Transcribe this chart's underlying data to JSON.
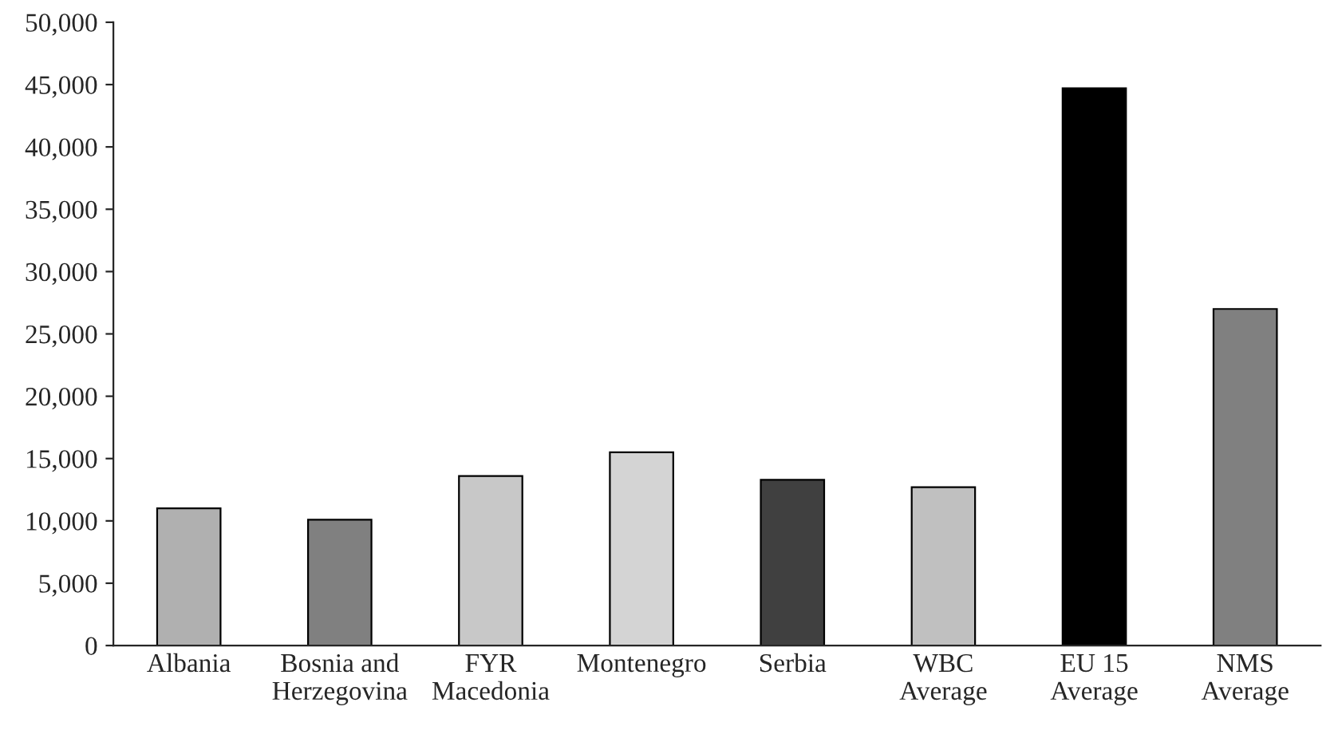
{
  "chart_data": {
    "type": "bar",
    "categories": [
      "Albania",
      "Bosnia and\nHerzegovina",
      "FYR\nMacedonia",
      "Montenegro",
      "Serbia",
      "WBC\nAverage",
      "EU 15\nAverage",
      "NMS\nAverage"
    ],
    "values": [
      11000,
      10100,
      13600,
      15500,
      13300,
      12700,
      44700,
      27000
    ],
    "colors": [
      "#b0b0b0",
      "#808080",
      "#c8c8c8",
      "#d4d4d4",
      "#404040",
      "#c0c0c0",
      "#000000",
      "#808080"
    ],
    "ylim": [
      0,
      50000
    ],
    "yticks": [
      {
        "value": 0,
        "label": "0"
      },
      {
        "value": 5000,
        "label": "5,000"
      },
      {
        "value": 10000,
        "label": "10,000"
      },
      {
        "value": 15000,
        "label": "15,000"
      },
      {
        "value": 20000,
        "label": "20,000"
      },
      {
        "value": 25000,
        "label": "25,000"
      },
      {
        "value": 30000,
        "label": "30,000"
      },
      {
        "value": 35000,
        "label": "35,000"
      },
      {
        "value": 40000,
        "label": "40,000"
      },
      {
        "value": 45000,
        "label": "45,000"
      },
      {
        "value": 50000,
        "label": "50,000"
      }
    ],
    "grid": false,
    "legend": false
  }
}
